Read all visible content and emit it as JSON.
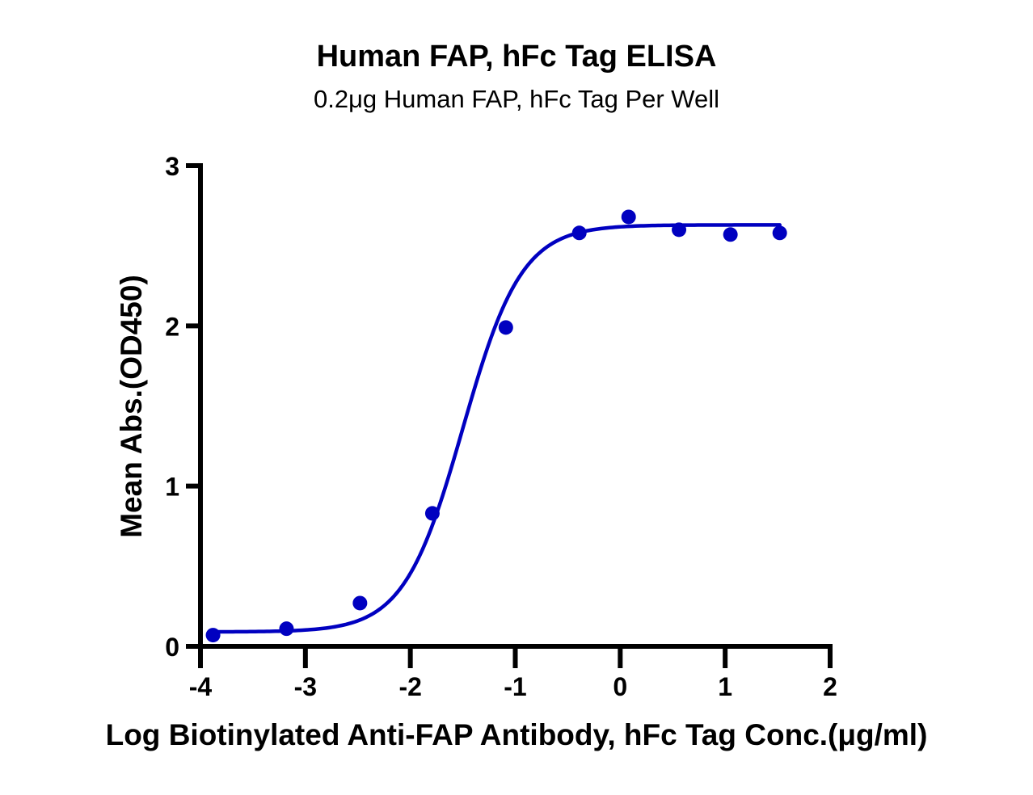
{
  "chart_data": {
    "type": "scatter",
    "title": "Human FAP, hFc Tag ELISA",
    "subtitle": "0.2μg Human FAP, hFc Tag Per Well",
    "xlabel": "Log Biotinylated Anti-FAP Antibody, hFc Tag Conc.(μg/ml)",
    "ylabel": "Mean Abs.(OD450)",
    "xlim": [
      -4,
      2
    ],
    "ylim": [
      0,
      3
    ],
    "xticks": [
      -4,
      -3,
      -2,
      -1,
      0,
      1,
      2
    ],
    "xtick_labels": [
      "-4",
      "-3",
      "-2",
      "-1",
      "0",
      "1",
      "2"
    ],
    "yticks": [
      0,
      1,
      2,
      3
    ],
    "ytick_labels": [
      "0",
      "1",
      "2",
      "3"
    ],
    "grid": false,
    "legend": null,
    "series": [
      {
        "name": "Mean Abs.(OD450)",
        "kind": "points",
        "color": "#0000C0",
        "x": [
          -3.88,
          -3.18,
          -2.48,
          -1.79,
          -1.09,
          -0.39,
          0.08,
          0.56,
          1.05,
          1.52
        ],
        "y": [
          0.07,
          0.11,
          0.27,
          0.83,
          1.99,
          2.58,
          2.68,
          2.6,
          2.57,
          2.58
        ]
      },
      {
        "name": "4PL fit",
        "kind": "curve",
        "color": "#0000C0",
        "bottom": 0.09,
        "top": 2.63,
        "logEC50": -1.5,
        "hill": 1.55,
        "x_range": [
          -3.88,
          1.52
        ]
      }
    ]
  }
}
